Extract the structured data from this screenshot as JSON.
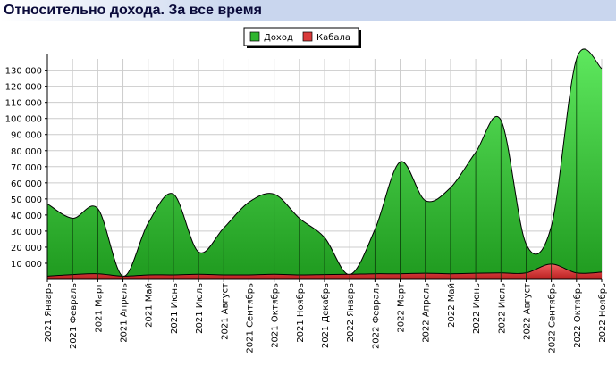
{
  "page": {
    "title": "Относительно дохода. За все время"
  },
  "chart_data": {
    "type": "area",
    "categories": [
      "2021 Январь",
      "2021 Февраль",
      "2021 Март",
      "2021 Апрель",
      "2021 Май",
      "2021 Июнь",
      "2021 Июль",
      "2021 Август",
      "2021 Сентябрь",
      "2021 Октябрь",
      "2021 Ноябрь",
      "2021 Декабрь",
      "2022 Январь",
      "2022 Февраль",
      "2022 Март",
      "2022 Апрель",
      "2022 Май",
      "2022 Июнь",
      "2022 Июль",
      "2022 Август",
      "2022 Сентябрь",
      "2022 Октябрь",
      "2022 Ноябрь"
    ],
    "series": [
      {
        "name": "Доход",
        "color": "#2fb52f",
        "values": [
          47000,
          38000,
          44000,
          2000,
          35000,
          53000,
          17000,
          32000,
          48000,
          53000,
          38000,
          26000,
          3000,
          31000,
          73000,
          49000,
          57000,
          79000,
          99000,
          22000,
          33000,
          137000,
          131000
        ]
      },
      {
        "name": "Кабала",
        "color": "#d93a3a",
        "values": [
          2000,
          3000,
          3500,
          2000,
          2800,
          2800,
          3200,
          2800,
          2800,
          3200,
          2800,
          3000,
          3200,
          3500,
          3500,
          3800,
          3500,
          3800,
          4000,
          4000,
          9500,
          4000,
          4500
        ]
      }
    ],
    "y_ticks": [
      "10 000",
      "20 000",
      "30 000",
      "40 000",
      "50 000",
      "60 000",
      "70 000",
      "80 000",
      "90 000",
      "100 000",
      "110 000",
      "120 000",
      "130 000"
    ],
    "ylim": [
      0,
      137000
    ],
    "grid": true,
    "legend_position": "top-center"
  }
}
